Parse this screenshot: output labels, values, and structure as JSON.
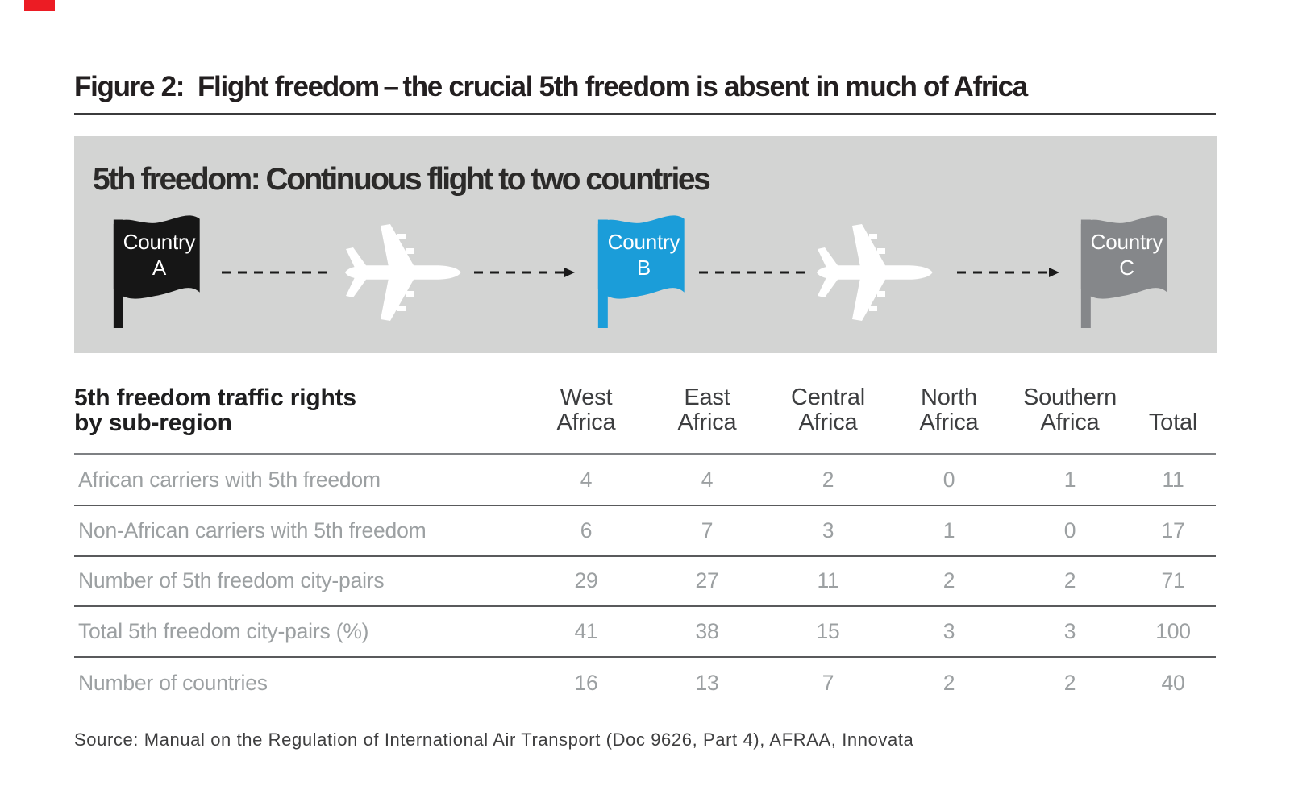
{
  "page": {
    "red_tab_color": "#ec1c24"
  },
  "figure": {
    "title": "Figure 2:  Flight freedom – the crucial 5th freedom is absent in much of Africa"
  },
  "banner": {
    "heading": "5th freedom: Continuous flight to two countries",
    "bg_color": "#d3d4d3",
    "arrow_color": "#1a1a1a",
    "plane_icon": "airplane-top-view",
    "flags": [
      {
        "line1": "Country",
        "line2": "A",
        "color": "#161616"
      },
      {
        "line1": "Country",
        "line2": "B",
        "color": "#1b9dd9"
      },
      {
        "line1": "Country",
        "line2": "C",
        "color": "#85878a"
      }
    ]
  },
  "table": {
    "title_line1": "5th freedom traffic rights",
    "title_line2": "by sub-region",
    "columns": [
      {
        "line1": "West",
        "line2": "Africa"
      },
      {
        "line1": "East",
        "line2": "Africa"
      },
      {
        "line1": "Central",
        "line2": "Africa"
      },
      {
        "line1": "North",
        "line2": "Africa"
      },
      {
        "line1": "Southern",
        "line2": "Africa"
      },
      {
        "line1": "",
        "line2": "Total"
      }
    ],
    "rows": [
      {
        "label": "African carriers with 5th freedom",
        "values": [
          "4",
          "4",
          "2",
          "0",
          "1",
          "11"
        ]
      },
      {
        "label": "Non-African carriers with 5th freedom",
        "values": [
          "6",
          "7",
          "3",
          "1",
          "0",
          "17"
        ]
      },
      {
        "label": "Number of 5th freedom city-pairs",
        "values": [
          "29",
          "27",
          "11",
          "2",
          "2",
          "71"
        ]
      },
      {
        "label": "Total 5th freedom city-pairs (%)",
        "values": [
          "41",
          "38",
          "15",
          "3",
          "3",
          "100"
        ]
      },
      {
        "label": "Number of countries",
        "values": [
          "16",
          "13",
          "7",
          "2",
          "2",
          "40"
        ]
      }
    ]
  },
  "source": "Source: Manual on the Regulation of International Air Transport (Doc 9626, Part 4), AFRAA, Innovata",
  "chart_data": {
    "type": "table",
    "title": "5th freedom traffic rights by sub-region",
    "categories": [
      "West Africa",
      "East Africa",
      "Central Africa",
      "North Africa",
      "Southern Africa",
      "Total"
    ],
    "series": [
      {
        "name": "African carriers with 5th freedom",
        "values": [
          4,
          4,
          2,
          0,
          1,
          11
        ]
      },
      {
        "name": "Non-African carriers with 5th freedom",
        "values": [
          6,
          7,
          3,
          1,
          0,
          17
        ]
      },
      {
        "name": "Number of 5th freedom city-pairs",
        "values": [
          29,
          27,
          11,
          2,
          2,
          71
        ]
      },
      {
        "name": "Total 5th freedom city-pairs (%)",
        "values": [
          41,
          38,
          15,
          3,
          3,
          100
        ]
      },
      {
        "name": "Number of countries",
        "values": [
          16,
          13,
          7,
          2,
          2,
          40
        ]
      }
    ]
  }
}
